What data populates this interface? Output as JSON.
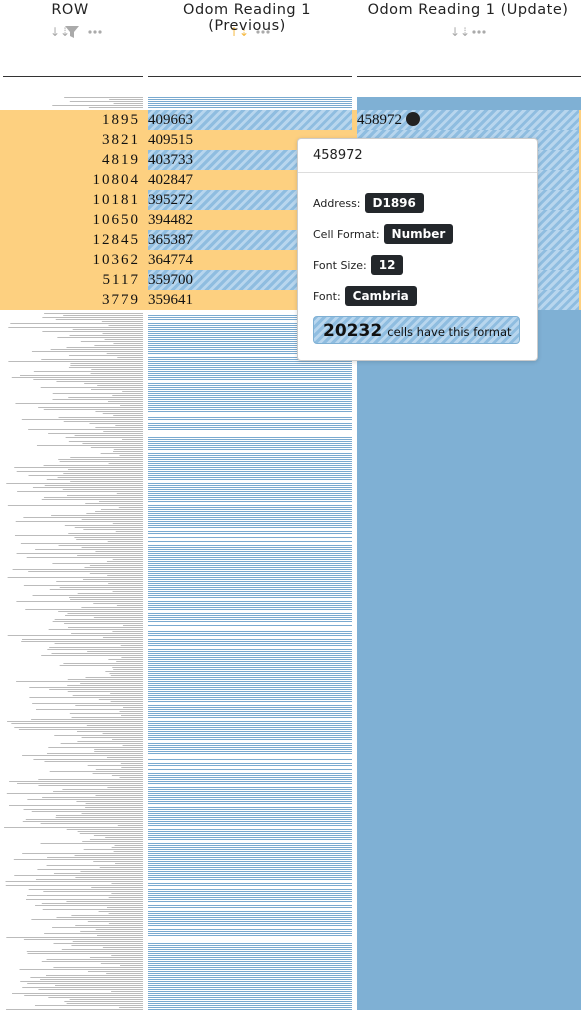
{
  "header": {
    "columns": [
      {
        "title": "ROW"
      },
      {
        "title": "Odom Reading 1 (Previous)"
      },
      {
        "title": "Odom Reading 1 (Update)"
      }
    ]
  },
  "rows": [
    {
      "row": 1895,
      "previous": 409663,
      "highlighted": true,
      "update": 458972
    },
    {
      "row": 3821,
      "previous": 409515,
      "highlighted": false
    },
    {
      "row": 4819,
      "previous": 403733,
      "highlighted": true
    },
    {
      "row": 10804,
      "previous": 402847,
      "highlighted": false
    },
    {
      "row": 10181,
      "previous": 395272,
      "highlighted": true
    },
    {
      "row": 10650,
      "previous": 394482,
      "highlighted": false
    },
    {
      "row": 12845,
      "previous": 365387,
      "highlighted": true
    },
    {
      "row": 10362,
      "previous": 364774,
      "highlighted": false
    },
    {
      "row": 5117,
      "previous": 359700,
      "highlighted": true
    },
    {
      "row": 3779,
      "previous": 359641,
      "highlighted": false
    }
  ],
  "tooltip": {
    "title": "458972",
    "fields": [
      {
        "label": "Address:",
        "value": "D1896"
      },
      {
        "label": "Cell Format:",
        "value": "Number"
      },
      {
        "label": "Font Size:",
        "value": "12"
      },
      {
        "label": "Font:",
        "value": "Cambria"
      }
    ],
    "summary": {
      "count": "20232",
      "text": "cells have this format"
    }
  }
}
